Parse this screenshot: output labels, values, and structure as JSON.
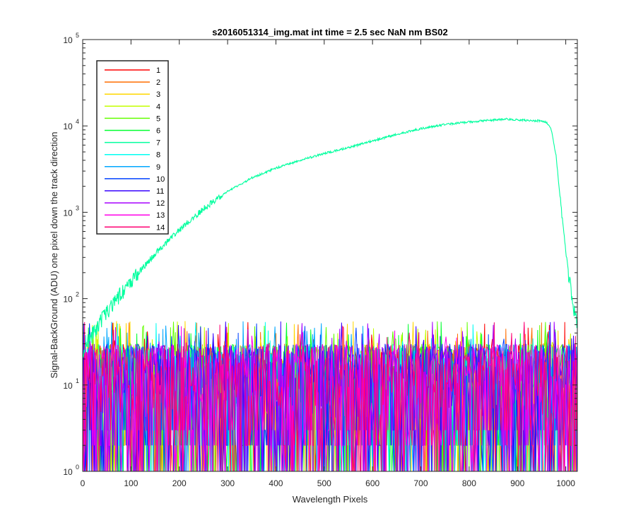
{
  "chart_data": {
    "type": "line",
    "title": "s2016051314_img.mat int time = 2.5 sec  NaN nm BS02",
    "xlabel": "Wavelength Pixels",
    "ylabel": "Signal-BackGround (ADU) one pixel down the track direction",
    "xlim": [
      0,
      1024
    ],
    "ylim": [
      1,
      100000
    ],
    "yscale": "log",
    "grid": false,
    "legend_position": "top-left",
    "x_ticks": [
      0,
      100,
      200,
      300,
      400,
      500,
      600,
      700,
      800,
      900,
      1000
    ],
    "y_ticks": [
      {
        "value": 1,
        "base": "10",
        "exp": "0"
      },
      {
        "value": 10,
        "base": "10",
        "exp": "1"
      },
      {
        "value": 100,
        "base": "10",
        "exp": "2"
      },
      {
        "value": 1000,
        "base": "10",
        "exp": "3"
      },
      {
        "value": 10000,
        "base": "10",
        "exp": "4"
      },
      {
        "value": 100000,
        "base": "10",
        "exp": "5"
      }
    ],
    "signal_series": "7",
    "signal_profile": {
      "x": [
        0,
        20,
        50,
        100,
        150,
        200,
        250,
        300,
        350,
        400,
        450,
        500,
        550,
        600,
        650,
        700,
        750,
        800,
        850,
        880,
        900,
        930,
        950,
        960,
        970,
        980,
        990,
        1000,
        1010,
        1020,
        1024
      ],
      "y": [
        25,
        38,
        70,
        160,
        330,
        620,
        1100,
        1750,
        2500,
        3250,
        4000,
        4800,
        5600,
        6700,
        8000,
        9300,
        10400,
        11100,
        11700,
        12000,
        11800,
        11500,
        11500,
        11000,
        9000,
        4500,
        1200,
        350,
        130,
        60,
        45
      ]
    },
    "noise_floor": {
      "min": 1,
      "typical_max": 30,
      "peak_max": 55
    },
    "series": [
      {
        "name": "1",
        "color": "#FF0000"
      },
      {
        "name": "2",
        "color": "#FF6E00"
      },
      {
        "name": "3",
        "color": "#FFD700"
      },
      {
        "name": "4",
        "color": "#C4FF00"
      },
      {
        "name": "5",
        "color": "#63FF00"
      },
      {
        "name": "6",
        "color": "#00FF30"
      },
      {
        "name": "7",
        "color": "#00FF9E"
      },
      {
        "name": "8",
        "color": "#00FFF2"
      },
      {
        "name": "9",
        "color": "#00A7FF"
      },
      {
        "name": "10",
        "color": "#0041FF"
      },
      {
        "name": "11",
        "color": "#3700FF"
      },
      {
        "name": "12",
        "color": "#A600FF"
      },
      {
        "name": "13",
        "color": "#FF00E8"
      },
      {
        "name": "14",
        "color": "#FF0073"
      }
    ]
  }
}
